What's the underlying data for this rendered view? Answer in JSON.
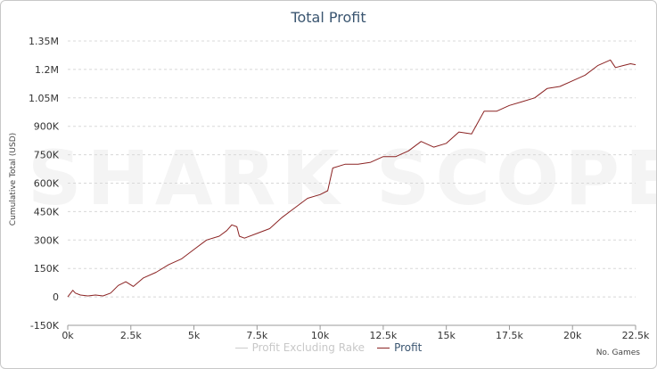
{
  "watermark": "SHARK SCOPE",
  "chart_data": {
    "type": "line",
    "title": "Total Profit",
    "xlabel": "No. Games",
    "ylabel": "Cumulative Total (USD)",
    "xlim": [
      0,
      22500
    ],
    "ylim": [
      -150000,
      1350000
    ],
    "x_ticks": [
      0,
      2500,
      5000,
      7500,
      10000,
      12500,
      15000,
      17500,
      20000,
      22500
    ],
    "x_tick_labels": [
      "0k",
      "2.5k",
      "5k",
      "7.5k",
      "10k",
      "12.5k",
      "15k",
      "17.5k",
      "20k",
      "22.5k"
    ],
    "y_ticks": [
      -150000,
      0,
      150000,
      300000,
      450000,
      600000,
      750000,
      900000,
      1050000,
      1200000,
      1350000
    ],
    "y_tick_labels": [
      "-150K",
      "0",
      "150K",
      "300K",
      "450K",
      "600K",
      "750K",
      "900K",
      "1.05M",
      "1.2M",
      "1.35M"
    ],
    "grid": true,
    "legend_position": "bottom-center",
    "series": [
      {
        "name": "Profit Excluding Rake",
        "color": "#cccccc",
        "x": [],
        "y": []
      },
      {
        "name": "Profit",
        "color": "#8b2323",
        "x": [
          0,
          200,
          300,
          500,
          800,
          1100,
          1400,
          1700,
          2000,
          2300,
          2600,
          3000,
          3500,
          4000,
          4500,
          5000,
          5500,
          6000,
          6300,
          6500,
          6700,
          6800,
          7000,
          7500,
          8000,
          8500,
          9000,
          9500,
          10000,
          10300,
          10500,
          11000,
          11500,
          12000,
          12500,
          13000,
          13500,
          14000,
          14500,
          15000,
          15500,
          16000,
          16500,
          17000,
          17500,
          18000,
          18500,
          19000,
          19500,
          20000,
          20500,
          21000,
          21500,
          21700,
          22000,
          22300,
          22500
        ],
        "y": [
          0,
          35000,
          20000,
          10000,
          5000,
          10000,
          5000,
          20000,
          60000,
          80000,
          55000,
          100000,
          130000,
          170000,
          200000,
          250000,
          300000,
          320000,
          350000,
          380000,
          370000,
          320000,
          310000,
          335000,
          360000,
          420000,
          470000,
          520000,
          540000,
          560000,
          680000,
          700000,
          700000,
          710000,
          740000,
          740000,
          770000,
          820000,
          790000,
          810000,
          870000,
          860000,
          980000,
          980000,
          1010000,
          1030000,
          1050000,
          1100000,
          1110000,
          1140000,
          1170000,
          1220000,
          1250000,
          1210000,
          1220000,
          1230000,
          1225000
        ]
      }
    ]
  }
}
